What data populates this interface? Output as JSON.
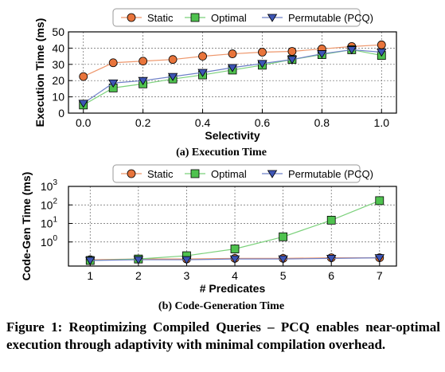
{
  "chart_data": [
    {
      "type": "line",
      "subcaption": "(a) Execution Time",
      "xlabel": "Selectivity",
      "ylabel": "Execution Time (ms)",
      "xlim": [
        -0.05,
        1.05
      ],
      "ylim": [
        0,
        50
      ],
      "xticks": [
        "0.0",
        "0.2",
        "0.4",
        "0.6",
        "0.8",
        "1.0"
      ],
      "yticks": [
        "0",
        "10",
        "20",
        "30",
        "40",
        "50"
      ],
      "grid": true,
      "legend": "top",
      "x": [
        0.0,
        0.1,
        0.2,
        0.3,
        0.4,
        0.5,
        0.6,
        0.7,
        0.8,
        0.9,
        1.0
      ],
      "series": [
        {
          "name": "Static",
          "color": "#e8743b",
          "marker": "circle",
          "values": [
            22.5,
            31,
            32,
            33,
            35,
            36.5,
            37.5,
            38,
            39.5,
            41,
            42
          ]
        },
        {
          "name": "Optimal",
          "color": "#4fc24f",
          "marker": "square",
          "values": [
            5,
            15.5,
            18,
            21,
            23.5,
            26.5,
            29.5,
            33,
            36,
            39,
            35.5
          ]
        },
        {
          "name": "Permutable (PCQ)",
          "color": "#3d55b5",
          "marker": "triangle-down",
          "values": [
            6,
            18.5,
            20,
            22.5,
            25,
            28,
            30.5,
            33,
            36.5,
            39,
            37.5
          ]
        }
      ]
    },
    {
      "type": "line",
      "subcaption": "(b) Code-Generation Time",
      "xlabel": "# Predicates",
      "ylabel": "Code-Gen Time (ms)",
      "xlim": [
        0.55,
        7.35
      ],
      "yscale": "log",
      "ylim": [
        0.05,
        1000
      ],
      "xticks": [
        "1",
        "2",
        "3",
        "4",
        "5",
        "6",
        "7"
      ],
      "ytick_exponents": [
        "0",
        "1",
        "2",
        "3"
      ],
      "ytick_base": "10",
      "grid": true,
      "legend": "top",
      "x": [
        1,
        2,
        3,
        4,
        5,
        6,
        7
      ],
      "series": [
        {
          "name": "Static",
          "color": "#e8743b",
          "marker": "circle",
          "values": [
            0.11,
            0.12,
            0.12,
            0.13,
            0.13,
            0.14,
            0.14
          ]
        },
        {
          "name": "Optimal",
          "color": "#4fc24f",
          "marker": "square",
          "values": [
            0.1,
            0.12,
            0.18,
            0.42,
            1.9,
            15,
            170
          ]
        },
        {
          "name": "Permutable (PCQ)",
          "color": "#3d55b5",
          "marker": "triangle-down",
          "values": [
            0.1,
            0.11,
            0.11,
            0.12,
            0.12,
            0.13,
            0.14
          ]
        }
      ]
    }
  ],
  "caption": "Figure 1: Reoptimizing Compiled Queries – PCQ enables near-optimal execution through adaptivity with minimal compilation overhead."
}
